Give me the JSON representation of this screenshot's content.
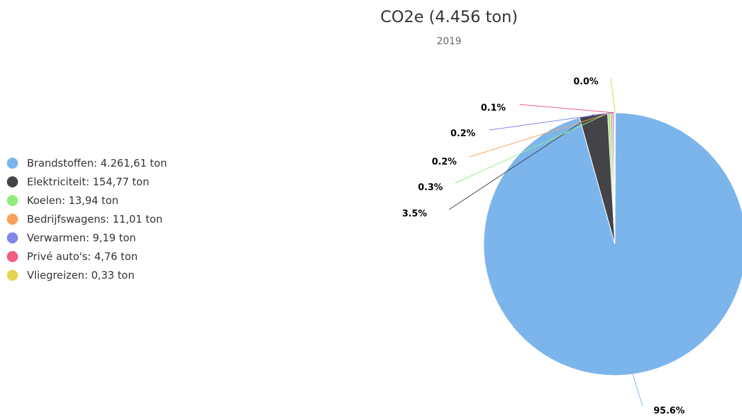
{
  "chart_data": {
    "type": "pie",
    "title": "CO2e (4.456 ton)",
    "subtitle": "2019",
    "unit": "ton",
    "categories": [
      "Brandstoffen",
      "Elektriciteit",
      "Koelen",
      "Bedrijfswagens",
      "Verwarmen",
      "Privé auto's",
      "Vliegreizen"
    ],
    "values": [
      4261.61,
      154.77,
      13.94,
      11.01,
      9.19,
      4.76,
      0.33
    ],
    "percent_labels": [
      "95.6%",
      "3.5%",
      "0.3%",
      "0.2%",
      "0.2%",
      "0.1%",
      "0.0%"
    ],
    "colors": [
      "#7cb5ec",
      "#434348",
      "#90ed7d",
      "#f7a35c",
      "#8085e9",
      "#f15c80",
      "#e4d354"
    ],
    "legend": {
      "placement": "left",
      "items": [
        "Brandstoffen: 4.261,61 ton",
        "Elektriciteit: 154,77 ton",
        "Koelen: 13,94 ton",
        "Bedrijfswagens: 11,01 ton",
        "Verwarmen: 9,19 ton",
        "Privé auto's: 4,76 ton",
        "Vliegreizen: 0,33 ton"
      ]
    }
  }
}
